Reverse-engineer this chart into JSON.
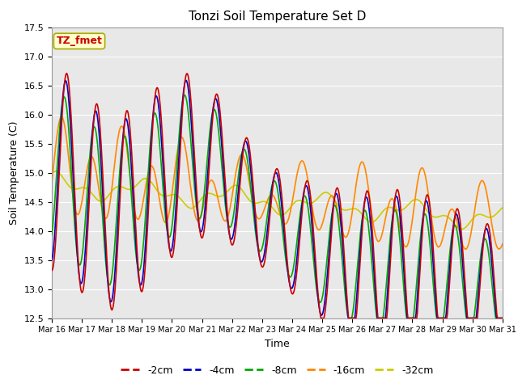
{
  "title": "Tonzi Soil Temperature Set D",
  "xlabel": "Time",
  "ylabel": "Soil Temperature (C)",
  "ylim": [
    12.5,
    17.5
  ],
  "yticks": [
    12.5,
    13.0,
    13.5,
    14.0,
    14.5,
    15.0,
    15.5,
    16.0,
    16.5,
    17.0,
    17.5
  ],
  "x_labels": [
    "Mar 16",
    "Mar 17",
    "Mar 18",
    "Mar 19",
    "Mar 20",
    "Mar 21",
    "Mar 22",
    "Mar 23",
    "Mar 24",
    "Mar 25",
    "Mar 26",
    "Mar 27",
    "Mar 28",
    "Mar 29",
    "Mar 30",
    "Mar 31"
  ],
  "legend_labels": [
    "-2cm",
    "-4cm",
    "-8cm",
    "-16cm",
    "-32cm"
  ],
  "line_colors": [
    "#cc0000",
    "#0000cc",
    "#00aa00",
    "#ff8800",
    "#cccc00"
  ],
  "plot_bg_color": "#e8e8e8",
  "annotation_text": "TZ_fmet",
  "annotation_bg": "#ffffcc",
  "annotation_border": "#aaaa00",
  "fig_bg": "#ffffff"
}
